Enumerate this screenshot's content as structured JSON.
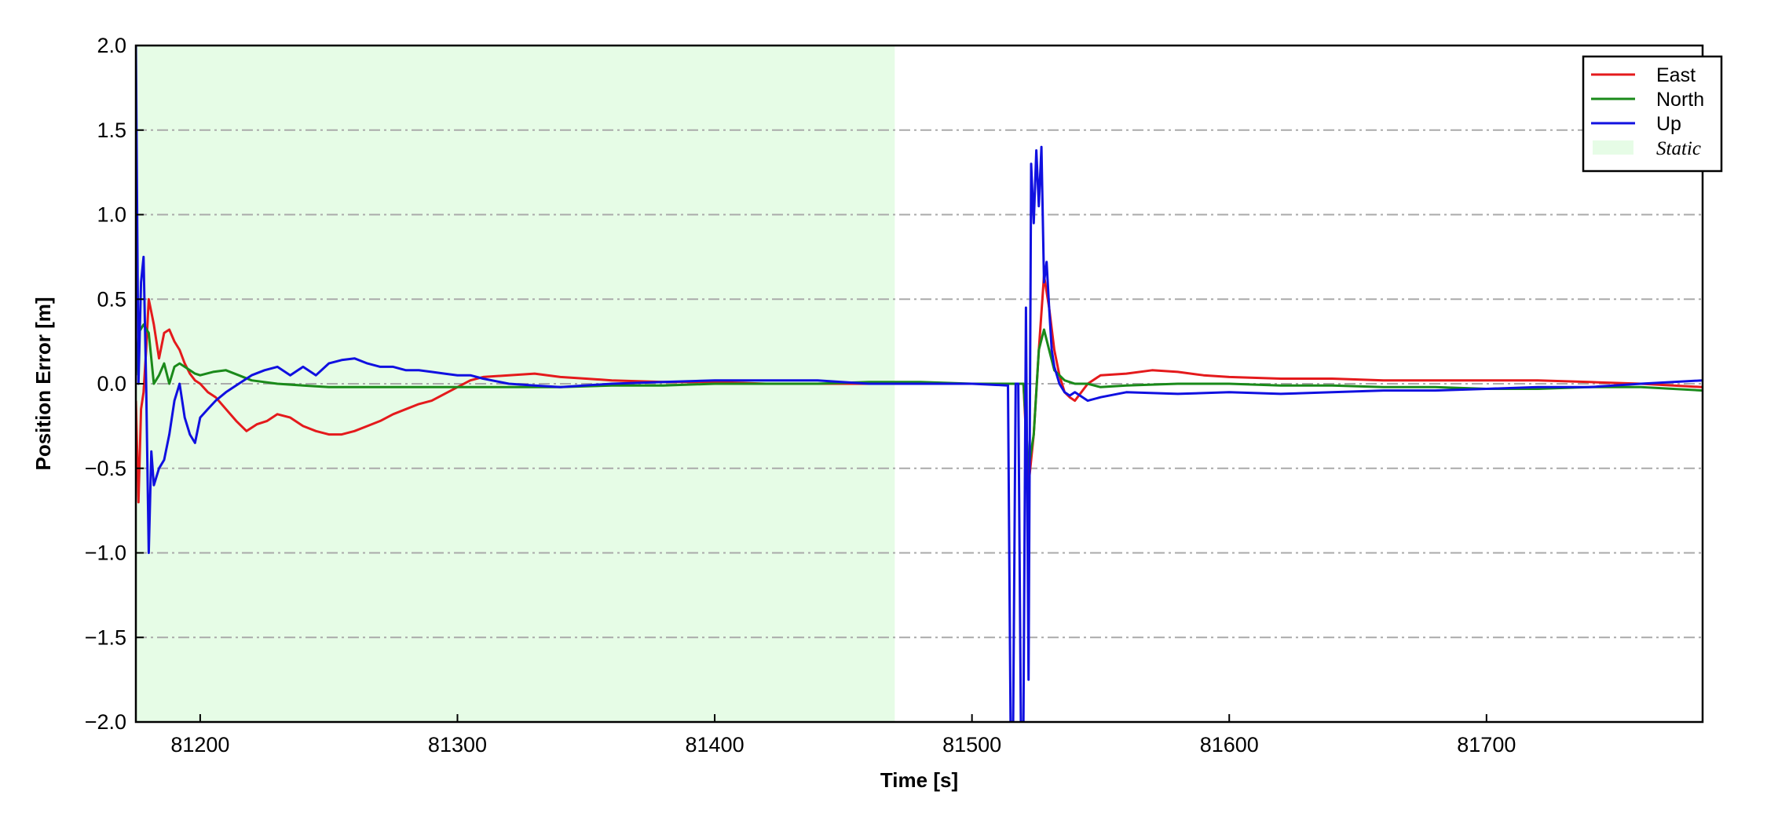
{
  "chart_data": {
    "type": "line",
    "title": "",
    "xlabel": "Time [s]",
    "ylabel": "Position Error [m]",
    "xlim": [
      81175,
      81784
    ],
    "ylim": [
      -2.0,
      2.0
    ],
    "xticks": [
      81200,
      81300,
      81400,
      81500,
      81600,
      81700
    ],
    "xtick_labels": [
      "81200",
      "81300",
      "81400",
      "81500",
      "81600",
      "81700"
    ],
    "yticks": [
      2.0,
      1.5,
      1.0,
      0.5,
      0.0,
      -0.5,
      -1.0,
      -1.5,
      -2.0
    ],
    "ytick_labels": [
      "2.0",
      "1.5",
      "1.0",
      "0.5",
      "0.0",
      "−0.5",
      "−1.0",
      "−1.5",
      "−2.0"
    ],
    "grid": "horizontal dash-dot",
    "legend_position": "top-right",
    "static_region": {
      "name": "Static",
      "x_start": 81175,
      "x_end": 81470,
      "color": "#e6fce6"
    },
    "series": [
      {
        "name": "East",
        "color": "#e41a1c",
        "x": [
          81175,
          81176,
          81177,
          81178,
          81179,
          81180,
          81182,
          81184,
          81186,
          81188,
          81190,
          81192,
          81194,
          81196,
          81198,
          81200,
          81203,
          81206,
          81210,
          81214,
          81218,
          81222,
          81226,
          81230,
          81235,
          81240,
          81245,
          81250,
          81255,
          81260,
          81265,
          81270,
          81275,
          81280,
          81285,
          81290,
          81295,
          81300,
          81305,
          81310,
          81320,
          81330,
          81340,
          81350,
          81360,
          81380,
          81400,
          81420,
          81440,
          81460,
          81480,
          81500,
          81515,
          81520,
          81522,
          81524,
          81526,
          81528,
          81530,
          81532,
          81534,
          81536,
          81538,
          81540,
          81545,
          81550,
          81560,
          81570,
          81580,
          81590,
          81600,
          81620,
          81640,
          81660,
          81680,
          81700,
          81720,
          81740,
          81760,
          81784
        ],
        "values": [
          -0.1,
          -0.7,
          -0.15,
          -0.05,
          0.2,
          0.5,
          0.35,
          0.15,
          0.3,
          0.32,
          0.25,
          0.2,
          0.12,
          0.06,
          0.02,
          0.0,
          -0.05,
          -0.08,
          -0.15,
          -0.22,
          -0.28,
          -0.24,
          -0.22,
          -0.18,
          -0.2,
          -0.25,
          -0.28,
          -0.3,
          -0.3,
          -0.28,
          -0.25,
          -0.22,
          -0.18,
          -0.15,
          -0.12,
          -0.1,
          -0.06,
          -0.02,
          0.02,
          0.04,
          0.05,
          0.06,
          0.04,
          0.03,
          0.02,
          0.01,
          0.01,
          0.0,
          0.0,
          0.0,
          0.0,
          0.0,
          0.0,
          0.0,
          -0.6,
          -0.3,
          0.2,
          0.64,
          0.45,
          0.2,
          0.05,
          -0.05,
          -0.08,
          -0.1,
          0.0,
          0.05,
          0.06,
          0.08,
          0.07,
          0.05,
          0.04,
          0.03,
          0.03,
          0.02,
          0.02,
          0.02,
          0.02,
          0.01,
          0.0,
          -0.02
        ]
      },
      {
        "name": "North",
        "color": "#1a8a1a",
        "x": [
          81175,
          81176,
          81178,
          81180,
          81182,
          81184,
          81186,
          81188,
          81190,
          81192,
          81194,
          81196,
          81198,
          81200,
          81205,
          81210,
          81215,
          81220,
          81230,
          81240,
          81250,
          81260,
          81280,
          81300,
          81320,
          81340,
          81360,
          81380,
          81400,
          81420,
          81440,
          81460,
          81480,
          81500,
          81515,
          81520,
          81522,
          81524,
          81526,
          81528,
          81530,
          81532,
          81534,
          81536,
          81538,
          81540,
          81545,
          81550,
          81560,
          81580,
          81600,
          81620,
          81640,
          81660,
          81680,
          81700,
          81720,
          81740,
          81760,
          81784
        ],
        "values": [
          0.05,
          0.3,
          0.35,
          0.3,
          0.0,
          0.05,
          0.12,
          0.0,
          0.1,
          0.12,
          0.1,
          0.08,
          0.06,
          0.05,
          0.07,
          0.08,
          0.05,
          0.02,
          0.0,
          -0.01,
          -0.02,
          -0.02,
          -0.02,
          -0.02,
          -0.02,
          -0.02,
          -0.01,
          -0.01,
          0.0,
          0.0,
          0.0,
          0.01,
          0.01,
          0.0,
          0.0,
          0.0,
          -0.5,
          -0.3,
          0.2,
          0.32,
          0.2,
          0.08,
          0.05,
          0.02,
          0.01,
          0.0,
          0.0,
          -0.02,
          -0.01,
          0.0,
          0.0,
          -0.01,
          -0.01,
          -0.02,
          -0.02,
          -0.03,
          -0.03,
          -0.02,
          -0.02,
          -0.04
        ]
      },
      {
        "name": "Up",
        "color": "#1010e0",
        "x": [
          81175,
          81176,
          81177,
          81178,
          81179,
          81180,
          81181,
          81182,
          81184,
          81186,
          81188,
          81190,
          81192,
          81194,
          81196,
          81198,
          81200,
          81203,
          81206,
          81210,
          81215,
          81220,
          81225,
          81230,
          81235,
          81240,
          81245,
          81250,
          81255,
          81260,
          81265,
          81270,
          81275,
          81280,
          81285,
          81290,
          81295,
          81300,
          81305,
          81310,
          81320,
          81330,
          81340,
          81360,
          81380,
          81400,
          81420,
          81440,
          81460,
          81480,
          81500,
          81514,
          81515,
          81516,
          81517,
          81518,
          81519,
          81520,
          81521,
          81522,
          81523,
          81524,
          81525,
          81526,
          81527,
          81528,
          81529,
          81530,
          81531,
          81532,
          81533,
          81534,
          81536,
          81538,
          81540,
          81545,
          81550,
          81560,
          81580,
          81600,
          81620,
          81640,
          81660,
          81680,
          81700,
          81720,
          81740,
          81760,
          81784
        ],
        "values": [
          2.0,
          0.0,
          0.6,
          0.75,
          0.0,
          -1.0,
          -0.4,
          -0.6,
          -0.5,
          -0.45,
          -0.3,
          -0.1,
          0.0,
          -0.2,
          -0.3,
          -0.35,
          -0.2,
          -0.15,
          -0.1,
          -0.05,
          0.0,
          0.05,
          0.08,
          0.1,
          0.05,
          0.1,
          0.05,
          0.12,
          0.14,
          0.15,
          0.12,
          0.1,
          0.1,
          0.08,
          0.08,
          0.07,
          0.06,
          0.05,
          0.05,
          0.03,
          0.0,
          -0.01,
          -0.02,
          0.0,
          0.01,
          0.02,
          0.02,
          0.02,
          0.0,
          0.0,
          0.0,
          -0.01,
          -2.0,
          -2.0,
          0.0,
          0.0,
          -2.0,
          -2.0,
          0.45,
          -1.75,
          1.3,
          0.95,
          1.38,
          1.05,
          1.4,
          0.6,
          0.72,
          0.45,
          0.2,
          0.1,
          0.05,
          0.0,
          -0.05,
          -0.07,
          -0.05,
          -0.1,
          -0.08,
          -0.05,
          -0.06,
          -0.05,
          -0.06,
          -0.05,
          -0.04,
          -0.04,
          -0.03,
          -0.02,
          -0.02,
          0.0,
          0.02
        ]
      }
    ]
  }
}
